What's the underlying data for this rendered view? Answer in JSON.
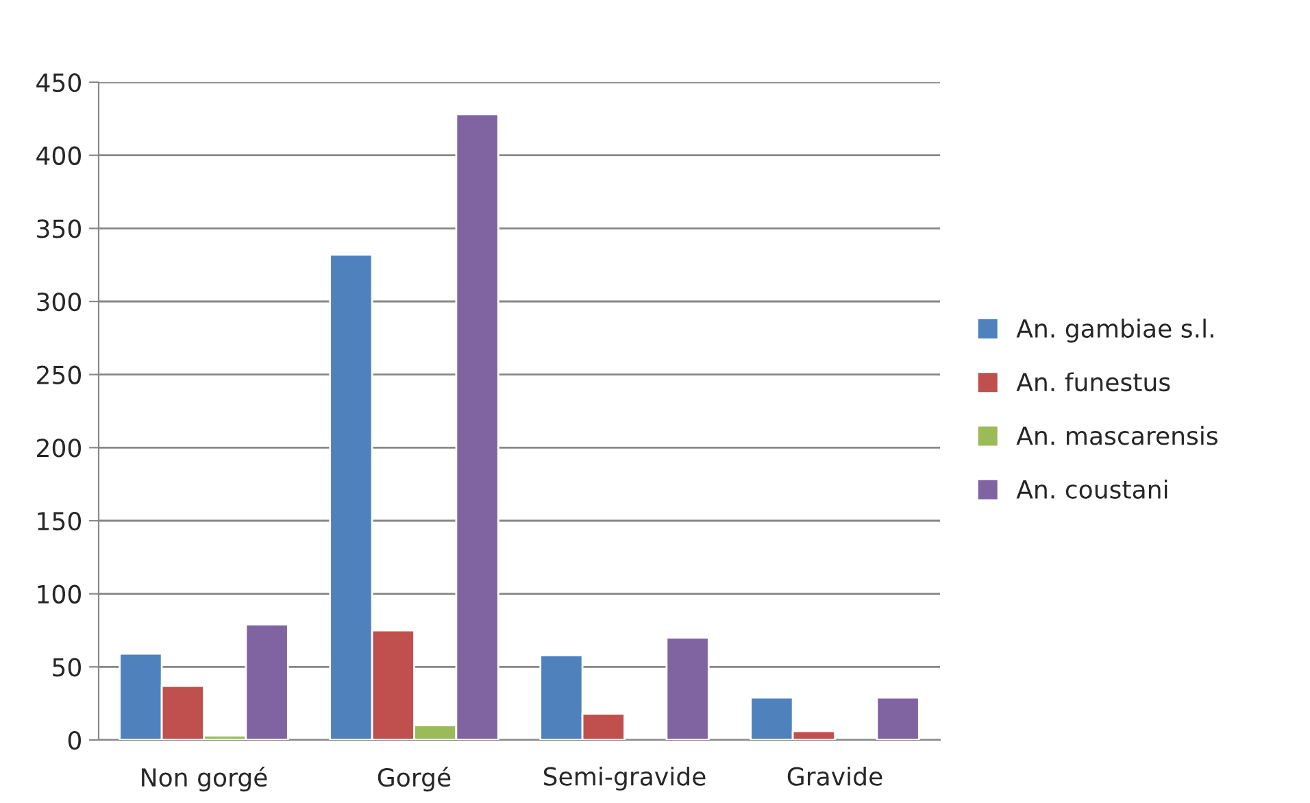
{
  "chart_data": {
    "type": "bar",
    "categories": [
      "Non gorgé",
      "Gorgé",
      "Semi-gravide",
      "Gravide"
    ],
    "series": [
      {
        "name": "An. gambiae s.l.",
        "color": "#4f81bd",
        "values": [
          59,
          332,
          58,
          29
        ]
      },
      {
        "name": "An. funestus",
        "color": "#c0504d",
        "values": [
          37,
          75,
          18,
          6
        ]
      },
      {
        "name": "An. mascarensis",
        "color": "#9bbb59",
        "values": [
          3,
          10,
          null,
          null
        ]
      },
      {
        "name": "An. coustani",
        "color": "#8064a2",
        "values": [
          79,
          428,
          70,
          29
        ]
      }
    ],
    "ylim": [
      0,
      450
    ],
    "yticks": [
      0,
      50,
      100,
      150,
      200,
      250,
      300,
      350,
      400,
      450
    ],
    "grid": "y",
    "legend": "right"
  }
}
